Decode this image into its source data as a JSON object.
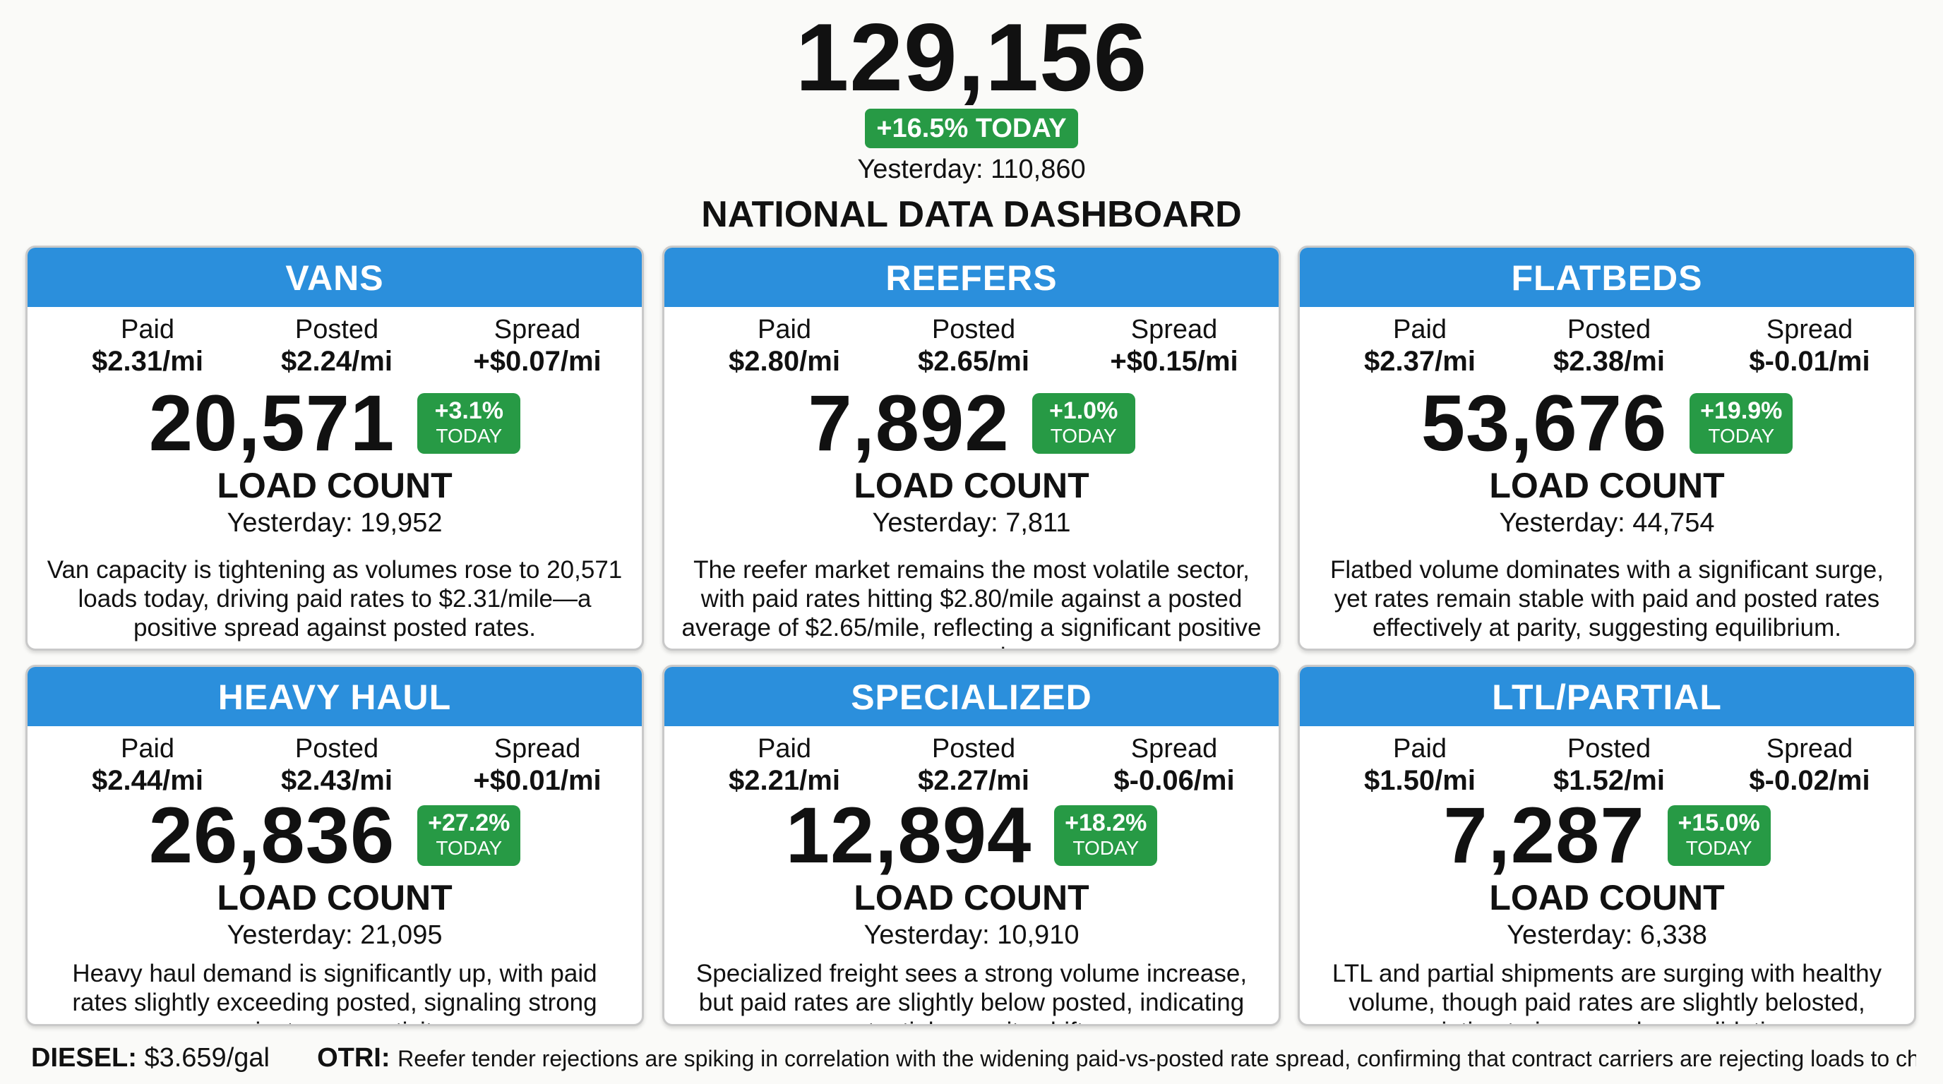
{
  "header": {
    "total_loads": "129,156",
    "change_badge": "+16.5% TODAY",
    "yesterday": "Yesterday: 110,860",
    "dashboard_title": "NATIONAL DATA DASHBOARD"
  },
  "colors": {
    "header_blue": "#2b8fdc",
    "badge_green": "#279a45"
  },
  "labels": {
    "paid": "Paid",
    "posted": "Posted",
    "spread": "Spread",
    "load_count": "LOAD COUNT",
    "today": "TODAY"
  },
  "cards": [
    {
      "title": "VANS",
      "paid": "$2.31/mi",
      "posted": "$2.24/mi",
      "spread": "+$0.07/mi",
      "load_count": "20,571",
      "change": "+3.1%",
      "yesterday": "Yesterday: 19,952",
      "description": "Van capacity is tightening as volumes rose to 20,571 loads today, driving paid rates to $2.31/mile—a positive spread against posted rates."
    },
    {
      "title": "REEFERS",
      "paid": "$2.80/mi",
      "posted": "$2.65/mi",
      "spread": "+$0.15/mi",
      "load_count": "7,892",
      "change": "+1.0%",
      "yesterday": "Yesterday: 7,811",
      "description": "The reefer market remains the most volatile sector, with paid rates hitting $2.80/mile against a posted average of $2.65/mile, reflecting a significant positive spread."
    },
    {
      "title": "FLATBEDS",
      "paid": "$2.37/mi",
      "posted": "$2.38/mi",
      "spread": "$-0.01/mi",
      "load_count": "53,676",
      "change": "+19.9%",
      "yesterday": "Yesterday: 44,754",
      "description": "Flatbed volume dominates with a significant surge, yet rates remain stable with paid and posted rates effectively at parity, suggesting equilibrium."
    },
    {
      "title": "HEAVY HAUL",
      "paid": "$2.44/mi",
      "posted": "$2.43/mi",
      "spread": "+$0.01/mi",
      "load_count": "26,836",
      "change": "+27.2%",
      "yesterday": "Yesterday: 21,095",
      "description": "Heavy haul demand is significantly up, with paid rates slightly exceeding posted, signaling strong project cargo activity."
    },
    {
      "title": "SPECIALIZED",
      "paid": "$2.21/mi",
      "posted": "$2.27/mi",
      "spread": "$-0.06/mi",
      "load_count": "12,894",
      "change": "+18.2%",
      "yesterday": "Yesterday: 10,910",
      "description": "Specialized freight sees a strong volume increase, but paid rates are slightly below posted, indicating potential capacity shifts."
    },
    {
      "title": "LTL/PARTIAL",
      "paid": "$1.50/mi",
      "posted": "$1.52/mi",
      "spread": "$-0.02/mi",
      "load_count": "7,287",
      "change": "+15.0%",
      "yesterday": "Yesterday: 6,338",
      "description": "LTL and partial shipments are surging with healthy volume, though paid rates are slightly belosted, pointing to increased consolidation."
    }
  ],
  "footer": {
    "diesel_label": "DIESEL:",
    "diesel_value": "$3.659/gal",
    "otri_label": "OTRI:",
    "otri_text": "Reefer tender rejections are spiking in correlation with the widening paid-vs-posted rate spread, confirming that contract carriers are rejecting loads to chase higher spot premiums."
  }
}
